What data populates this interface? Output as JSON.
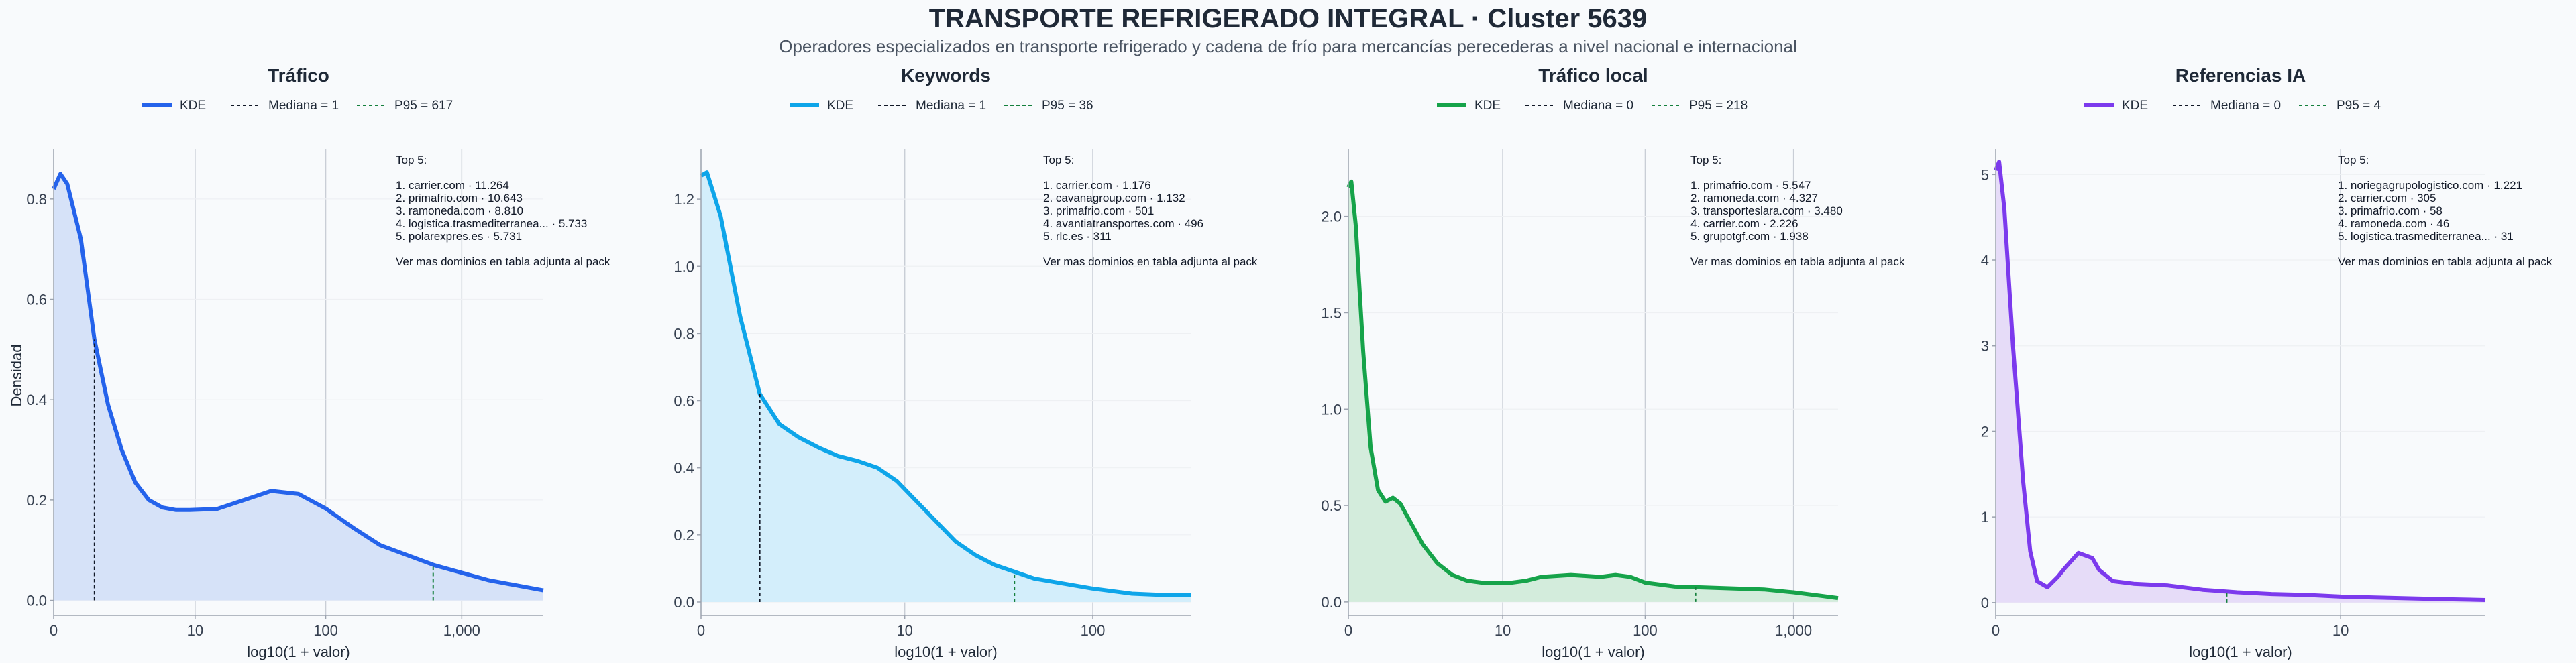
{
  "title": "TRANSPORTE REFRIGERADO INTEGRAL · Cluster 5639",
  "subtitle": "Operadores especializados en transporte refrigerado y cadena de frío para mercancías perecederas a nivel nacional e internacional",
  "ylabel": "Densidad",
  "chart_data": [
    {
      "type": "area",
      "title": "Tráfico",
      "color": "#2563eb",
      "fill": "#d6e2f8",
      "xlabel": "log10(1 + valor)",
      "legend": {
        "kde": "KDE",
        "median": "Mediana = 1",
        "p95": "P95 = 617"
      },
      "median": 1,
      "p95": 617,
      "xlim": [
        0,
        3.6
      ],
      "ylim": [
        -0.03,
        0.9
      ],
      "xticks": [
        {
          "x": 0,
          "label": "0"
        },
        {
          "x": 1.04,
          "label": "10"
        },
        {
          "x": 2.0,
          "label": "100"
        },
        {
          "x": 3.0,
          "label": "1,000"
        }
      ],
      "yticks": [
        {
          "y": 0,
          "label": "0.0"
        },
        {
          "y": 0.2,
          "label": "0.2"
        },
        {
          "y": 0.4,
          "label": "0.4"
        },
        {
          "y": 0.6,
          "label": "0.6"
        },
        {
          "y": 0.8,
          "label": "0.8"
        }
      ],
      "marker_x": {
        "median": 0.3,
        "p95": 2.79
      },
      "kde": {
        "x": [
          0,
          0.05,
          0.1,
          0.2,
          0.3,
          0.4,
          0.5,
          0.6,
          0.7,
          0.8,
          0.9,
          1.0,
          1.2,
          1.4,
          1.6,
          1.8,
          2.0,
          2.2,
          2.4,
          2.6,
          2.8,
          3.0,
          3.2,
          3.4,
          3.6
        ],
        "y": [
          0.82,
          0.85,
          0.83,
          0.72,
          0.52,
          0.39,
          0.3,
          0.235,
          0.2,
          0.185,
          0.18,
          0.18,
          0.182,
          0.2,
          0.218,
          0.212,
          0.183,
          0.145,
          0.11,
          0.09,
          0.07,
          0.055,
          0.04,
          0.03,
          0.02
        ]
      },
      "top": {
        "header": "Top 5:",
        "items": [
          "1. carrier.com · 11.264",
          "2. primafrio.com · 10.643",
          "3. ramoneda.com · 8.810",
          "4. logistica.trasmediterranea... · 5.733",
          "5. polarexpres.es · 5.731"
        ],
        "footer": "Ver mas dominios en tabla adjunta al pack"
      }
    },
    {
      "type": "area",
      "title": "Keywords",
      "color": "#0ea5e9",
      "fill": "#d3eefb",
      "xlabel": "log10(1 + valor)",
      "legend": {
        "kde": "KDE",
        "median": "Mediana = 1",
        "p95": "P95 = 36"
      },
      "median": 1,
      "p95": 36,
      "xlim": [
        0,
        2.5
      ],
      "ylim": [
        -0.04,
        1.35
      ],
      "xticks": [
        {
          "x": 0,
          "label": "0"
        },
        {
          "x": 1.04,
          "label": "10"
        },
        {
          "x": 2.0,
          "label": "100"
        }
      ],
      "yticks": [
        {
          "y": 0,
          "label": "0.0"
        },
        {
          "y": 0.2,
          "label": "0.2"
        },
        {
          "y": 0.4,
          "label": "0.4"
        },
        {
          "y": 0.6,
          "label": "0.6"
        },
        {
          "y": 0.8,
          "label": "0.8"
        },
        {
          "y": 1.0,
          "label": "1.0"
        },
        {
          "y": 1.2,
          "label": "1.2"
        }
      ],
      "marker_x": {
        "median": 0.3,
        "p95": 1.6
      },
      "kde": {
        "x": [
          0,
          0.03,
          0.1,
          0.2,
          0.3,
          0.4,
          0.5,
          0.6,
          0.7,
          0.8,
          0.9,
          1.0,
          1.1,
          1.2,
          1.3,
          1.4,
          1.5,
          1.6,
          1.7,
          1.8,
          2.0,
          2.2,
          2.4,
          2.5
        ],
        "y": [
          1.27,
          1.28,
          1.15,
          0.85,
          0.62,
          0.53,
          0.49,
          0.46,
          0.435,
          0.42,
          0.4,
          0.36,
          0.3,
          0.24,
          0.18,
          0.14,
          0.11,
          0.09,
          0.07,
          0.06,
          0.04,
          0.025,
          0.02,
          0.02
        ]
      },
      "top": {
        "header": "Top 5:",
        "items": [
          "1. carrier.com · 1.176",
          "2. cavanagroup.com · 1.132",
          "3. primafrio.com · 501",
          "4. avantiatransportes.com · 496",
          "5. rlc.es · 311"
        ],
        "footer": "Ver mas dominios en tabla adjunta al pack"
      }
    },
    {
      "type": "area",
      "title": "Tráfico local",
      "color": "#16a34a",
      "fill": "#d3ecdc",
      "xlabel": "log10(1 + valor)",
      "legend": {
        "kde": "KDE",
        "median": "Mediana = 0",
        "p95": "P95 = 218"
      },
      "median": 0,
      "p95": 218,
      "xlim": [
        0,
        3.3
      ],
      "ylim": [
        -0.07,
        2.35
      ],
      "xticks": [
        {
          "x": 0,
          "label": "0"
        },
        {
          "x": 1.04,
          "label": "10"
        },
        {
          "x": 2.0,
          "label": "100"
        },
        {
          "x": 3.0,
          "label": "1,000"
        }
      ],
      "yticks": [
        {
          "y": 0,
          "label": "0.0"
        },
        {
          "y": 0.5,
          "label": "0.5"
        },
        {
          "y": 1.0,
          "label": "1.0"
        },
        {
          "y": 1.5,
          "label": "1.5"
        },
        {
          "y": 2.0,
          "label": "2.0"
        }
      ],
      "marker_x": {
        "median": 0,
        "p95": 2.34
      },
      "kde": {
        "x": [
          0,
          0.02,
          0.05,
          0.1,
          0.15,
          0.2,
          0.25,
          0.3,
          0.35,
          0.4,
          0.5,
          0.6,
          0.7,
          0.8,
          0.9,
          1.0,
          1.1,
          1.2,
          1.3,
          1.5,
          1.7,
          1.8,
          1.9,
          2.0,
          2.2,
          2.4,
          2.6,
          2.8,
          3.0,
          3.2,
          3.3
        ],
        "y": [
          2.15,
          2.18,
          1.95,
          1.3,
          0.8,
          0.58,
          0.52,
          0.54,
          0.51,
          0.44,
          0.3,
          0.2,
          0.14,
          0.11,
          0.1,
          0.1,
          0.1,
          0.11,
          0.13,
          0.14,
          0.13,
          0.14,
          0.13,
          0.1,
          0.08,
          0.075,
          0.07,
          0.065,
          0.05,
          0.03,
          0.02
        ]
      },
      "top": {
        "header": "Top 5:",
        "items": [
          "1. primafrio.com · 5.547",
          "2. ramoneda.com · 4.327",
          "3. transporteslara.com · 3.480",
          "4. carrier.com · 2.226",
          "5. grupotgf.com · 1.938"
        ],
        "footer": "Ver mas dominios en tabla adjunta al pack"
      }
    },
    {
      "type": "area",
      "title": "Referencias IA",
      "color": "#7c3aed",
      "fill": "#e6dcf8",
      "xlabel": "log10(1 + valor)",
      "legend": {
        "kde": "KDE",
        "median": "Mediana = 0",
        "p95": "P95 = 4"
      },
      "median": 0,
      "p95": 4,
      "xlim": [
        0,
        1.42
      ],
      "ylim": [
        -0.15,
        5.3
      ],
      "xticks": [
        {
          "x": 0,
          "label": "0"
        },
        {
          "x": 1.0,
          "label": "10"
        }
      ],
      "yticks": [
        {
          "y": 0,
          "label": "0"
        },
        {
          "y": 1,
          "label": "1"
        },
        {
          "y": 2,
          "label": "2"
        },
        {
          "y": 3,
          "label": "3"
        },
        {
          "y": 4,
          "label": "4"
        },
        {
          "y": 5,
          "label": "5"
        }
      ],
      "marker_x": {
        "median": 0,
        "p95": 0.67
      },
      "kde": {
        "x": [
          0,
          0.01,
          0.025,
          0.05,
          0.08,
          0.1,
          0.12,
          0.15,
          0.18,
          0.2,
          0.24,
          0.28,
          0.3,
          0.34,
          0.4,
          0.5,
          0.6,
          0.7,
          0.8,
          0.9,
          1.0,
          1.1,
          1.2,
          1.3,
          1.42
        ],
        "y": [
          5.05,
          5.15,
          4.6,
          3.0,
          1.4,
          0.6,
          0.25,
          0.18,
          0.3,
          0.4,
          0.58,
          0.52,
          0.38,
          0.25,
          0.22,
          0.2,
          0.15,
          0.12,
          0.1,
          0.09,
          0.07,
          0.06,
          0.05,
          0.04,
          0.03
        ]
      },
      "top": {
        "header": "Top 5:",
        "items": [
          "1. noriegagrupologistico.com · 1.221",
          "2. carrier.com · 305",
          "3. primafrio.com · 58",
          "4. ramoneda.com · 46",
          "5. logistica.trasmediterranea... · 31"
        ],
        "footer": "Ver mas dominios en tabla adjunta al pack"
      }
    }
  ]
}
